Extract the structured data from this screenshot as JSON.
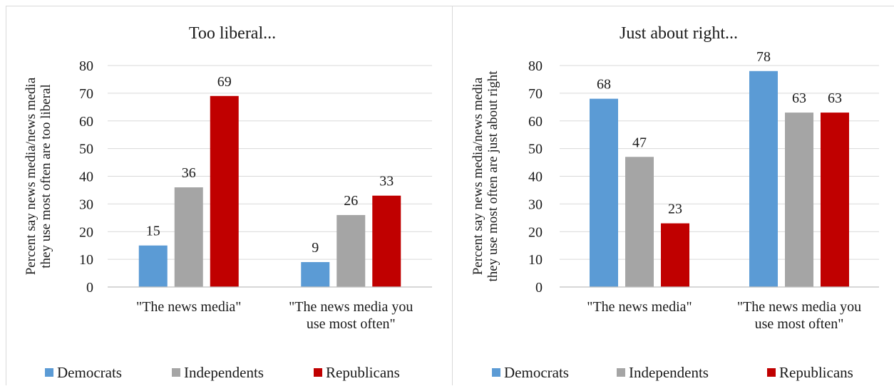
{
  "colors": {
    "democrats": "#5b9bd5",
    "independents": "#a5a5a5",
    "republicans": "#c00000",
    "gridline": "#d9d9d9",
    "axis": "#bfbfbf"
  },
  "chart_data": [
    {
      "type": "bar",
      "title": "Too liberal...",
      "ylabel": [
        "Percent say news media/news media",
        "they use most often are too liberal"
      ],
      "xlabel": "",
      "ylim": [
        0,
        80
      ],
      "yticks": [
        0,
        10,
        20,
        30,
        40,
        50,
        60,
        70,
        80
      ],
      "grid": true,
      "legend_position": "bottom",
      "categories": [
        [
          "\"The news media\""
        ],
        [
          "\"The news media you",
          "use most often\""
        ]
      ],
      "series": [
        {
          "name": "Democrats",
          "color_key": "democrats",
          "values": [
            15,
            9
          ]
        },
        {
          "name": "Independents",
          "color_key": "independents",
          "values": [
            36,
            26
          ]
        },
        {
          "name": "Republicans",
          "color_key": "republicans",
          "values": [
            69,
            33
          ]
        }
      ]
    },
    {
      "type": "bar",
      "title": "Just about right...",
      "ylabel": [
        "Percent say news media/news media",
        "they use most often are just about right"
      ],
      "xlabel": "",
      "ylim": [
        0,
        80
      ],
      "yticks": [
        0,
        10,
        20,
        30,
        40,
        50,
        60,
        70,
        80
      ],
      "grid": true,
      "legend_position": "bottom",
      "categories": [
        [
          "\"The news media\""
        ],
        [
          "\"The news media you",
          "use most often\""
        ]
      ],
      "series": [
        {
          "name": "Democrats",
          "color_key": "democrats",
          "values": [
            68,
            78
          ]
        },
        {
          "name": "Independents",
          "color_key": "independents",
          "values": [
            47,
            63
          ]
        },
        {
          "name": "Republicans",
          "color_key": "republicans",
          "values": [
            23,
            63
          ]
        }
      ]
    }
  ]
}
